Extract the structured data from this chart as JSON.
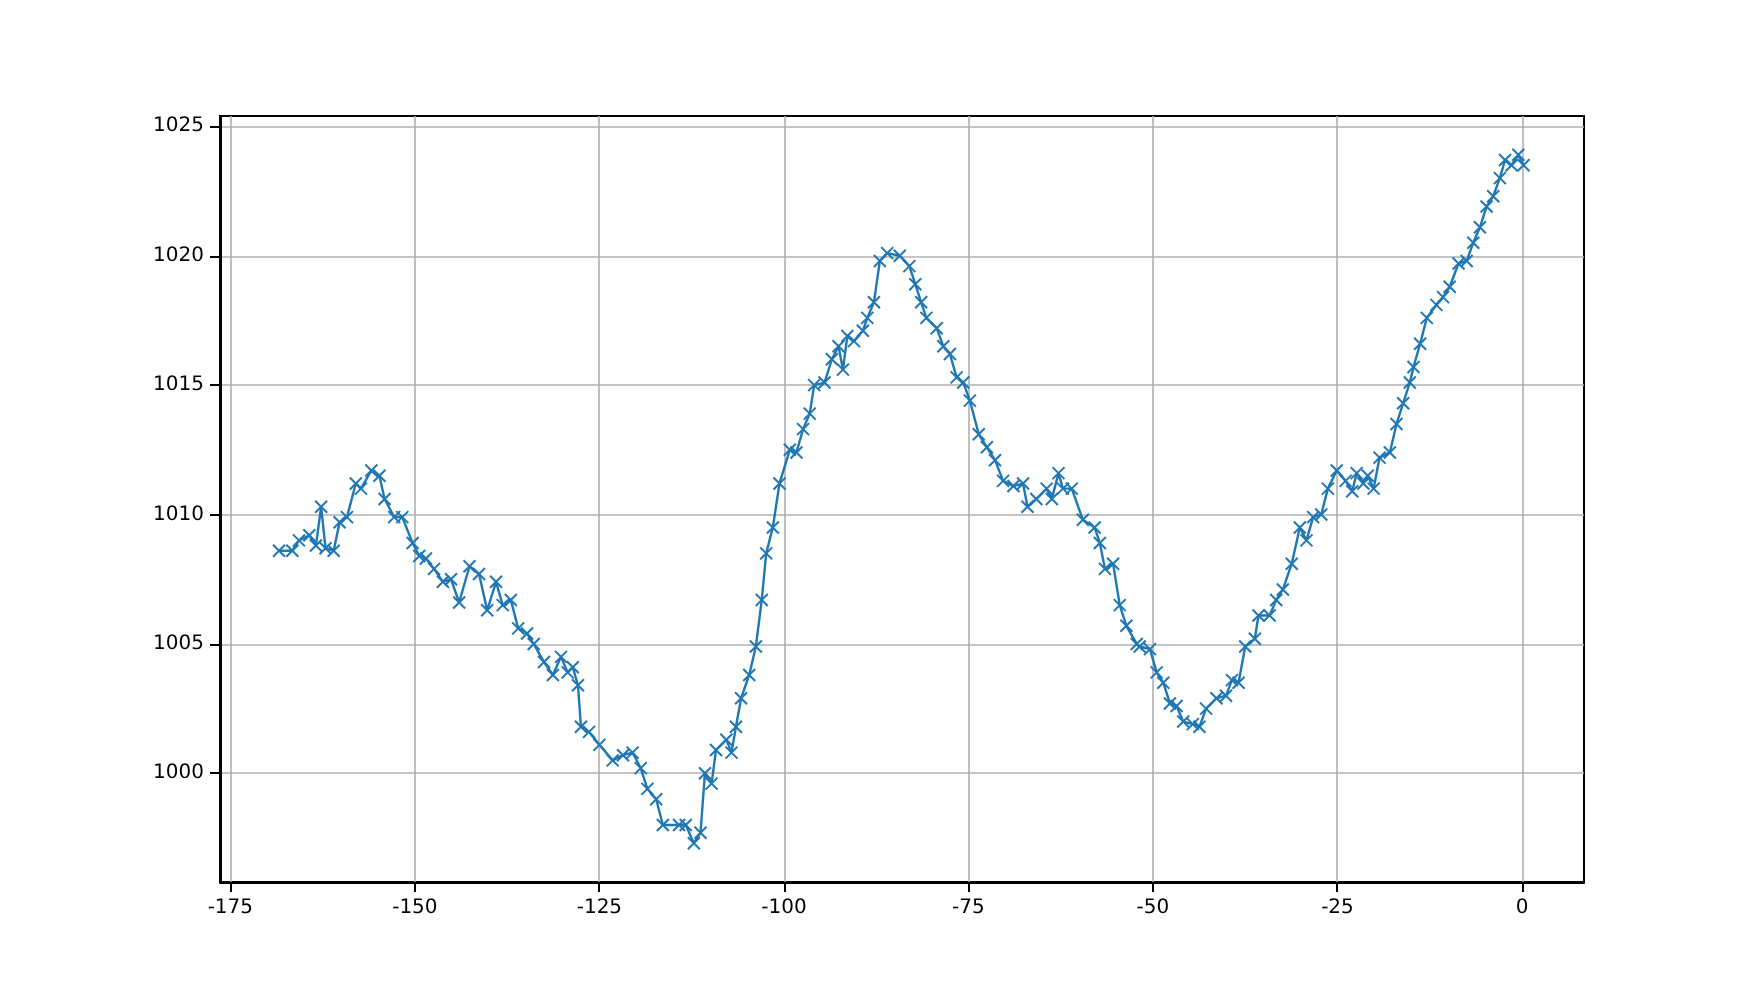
{
  "chart_data": {
    "type": "line",
    "marker": "cross",
    "line_style": "solid",
    "grid": true,
    "xlim": [
      -176.4,
      8.4
    ],
    "ylim": [
      995.8,
      1025.4
    ],
    "xticks": [
      -175,
      -150,
      -125,
      -100,
      -75,
      -50,
      -25,
      0
    ],
    "yticks": [
      1000,
      1005,
      1010,
      1015,
      1020,
      1025
    ],
    "series": [
      {
        "color": "#1f77b4",
        "x": [
          -168.4,
          -166.6,
          -165.7,
          -164.3,
          -163.4,
          -162.7,
          -162.1,
          -161.0,
          -160.2,
          -159.2,
          -158.0,
          -157.3,
          -155.9,
          -154.8,
          -154.1,
          -152.8,
          -151.7,
          -150.3,
          -149.4,
          -148.5,
          -147.4,
          -146.2,
          -145.1,
          -144.0,
          -142.6,
          -141.3,
          -140.2,
          -139.0,
          -138.1,
          -137.0,
          -136.0,
          -134.8,
          -133.9,
          -132.5,
          -131.3,
          -130.2,
          -129.3,
          -128.6,
          -127.9,
          -127.5,
          -126.4,
          -125.0,
          -123.2,
          -121.8,
          -120.5,
          -119.4,
          -118.5,
          -117.3,
          -116.4,
          -114.2,
          -113.3,
          -112.2,
          -111.3,
          -110.7,
          -109.8,
          -109.2,
          -107.8,
          -107.1,
          -106.5,
          -105.8,
          -104.7,
          -103.8,
          -103.0,
          -102.4,
          -101.5,
          -100.6,
          -99.2,
          -98.3,
          -97.4,
          -96.5,
          -95.9,
          -94.5,
          -93.5,
          -92.6,
          -92.0,
          -91.4,
          -90.5,
          -89.3,
          -88.7,
          -87.8,
          -87.0,
          -86.0,
          -84.3,
          -83.0,
          -82.2,
          -81.4,
          -80.7,
          -79.3,
          -78.4,
          -77.5,
          -76.6,
          -75.7,
          -74.8,
          -73.6,
          -72.5,
          -71.4,
          -70.3,
          -68.9,
          -67.6,
          -67.0,
          -65.8,
          -64.4,
          -63.7,
          -62.8,
          -62.2,
          -61.0,
          -59.5,
          -57.9,
          -57.2,
          -56.5,
          -55.4,
          -54.5,
          -53.6,
          -52.2,
          -51.8,
          -50.4,
          -49.5,
          -48.6,
          -47.7,
          -46.8,
          -45.9,
          -44.6,
          -43.7,
          -42.8,
          -41.4,
          -40.1,
          -39.3,
          -38.4,
          -37.5,
          -36.2,
          -35.7,
          -34.2,
          -33.3,
          -32.4,
          -31.2,
          -30.1,
          -29.2,
          -28.3,
          -27.2,
          -26.3,
          -25.1,
          -23.9,
          -23.0,
          -22.4,
          -21.5,
          -20.9,
          -20.1,
          -19.3,
          -17.9,
          -17.0,
          -16.1,
          -15.2,
          -14.7,
          -13.8,
          -12.9,
          -11.6,
          -10.7,
          -9.8,
          -8.6,
          -7.5,
          -6.6,
          -5.7,
          -4.8,
          -3.9,
          -3.0,
          -2.3,
          -1.4,
          -0.5,
          0.2
        ],
        "values": [
          1008.6,
          1008.6,
          1009.0,
          1009.2,
          1008.8,
          1010.3,
          1008.7,
          1008.6,
          1009.7,
          1009.9,
          1011.2,
          1011.0,
          1011.7,
          1011.5,
          1010.6,
          1009.9,
          1009.9,
          1008.9,
          1008.4,
          1008.3,
          1007.9,
          1007.4,
          1007.5,
          1006.6,
          1008.0,
          1007.7,
          1006.3,
          1007.4,
          1006.5,
          1006.7,
          1005.6,
          1005.4,
          1005.0,
          1004.3,
          1003.8,
          1004.5,
          1003.9,
          1004.1,
          1003.4,
          1001.8,
          1001.6,
          1001.1,
          1000.5,
          1000.7,
          1000.8,
          1000.2,
          999.4,
          999.0,
          998.0,
          998.0,
          998.0,
          997.3,
          997.7,
          1000.0,
          999.6,
          1000.9,
          1001.3,
          1000.8,
          1001.8,
          1002.9,
          1003.8,
          1004.9,
          1006.7,
          1008.5,
          1009.5,
          1011.2,
          1012.5,
          1012.4,
          1013.3,
          1013.9,
          1015.0,
          1015.1,
          1016.0,
          1016.5,
          1015.6,
          1016.9,
          1016.7,
          1017.1,
          1017.6,
          1018.2,
          1019.8,
          1020.1,
          1020.0,
          1019.6,
          1018.9,
          1018.2,
          1017.6,
          1017.2,
          1016.5,
          1016.2,
          1015.3,
          1015.1,
          1014.4,
          1013.1,
          1012.6,
          1012.1,
          1011.3,
          1011.1,
          1011.2,
          1010.3,
          1010.6,
          1011.0,
          1010.6,
          1011.6,
          1011.0,
          1011.0,
          1009.8,
          1009.5,
          1008.9,
          1007.9,
          1008.1,
          1006.5,
          1005.7,
          1005.0,
          1004.9,
          1004.8,
          1003.9,
          1003.5,
          1002.7,
          1002.6,
          1002.0,
          1001.9,
          1001.8,
          1002.5,
          1002.9,
          1003.0,
          1003.6,
          1003.5,
          1004.9,
          1005.2,
          1006.1,
          1006.1,
          1006.7,
          1007.1,
          1008.1,
          1009.5,
          1009.0,
          1009.9,
          1010.0,
          1011.0,
          1011.7,
          1011.3,
          1010.9,
          1011.6,
          1011.2,
          1011.5,
          1011.0,
          1012.2,
          1012.4,
          1013.5,
          1014.3,
          1015.1,
          1015.7,
          1016.6,
          1017.6,
          1018.1,
          1018.4,
          1018.8,
          1019.7,
          1019.8,
          1020.5,
          1021.1,
          1021.9,
          1022.3,
          1023.0,
          1023.7,
          1023.5,
          1023.9,
          1023.5
        ]
      }
    ]
  }
}
